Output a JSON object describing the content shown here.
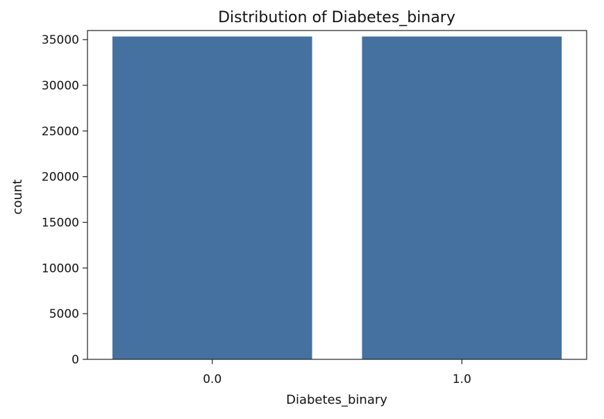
{
  "chart_data": {
    "type": "bar",
    "title": "Distribution of Diabetes_binary",
    "xlabel": "Diabetes_binary",
    "ylabel": "count",
    "categories": [
      "0.0",
      "1.0"
    ],
    "values": [
      35346,
      35346
    ],
    "ylim": [
      0,
      36000
    ],
    "yticks": [
      0,
      5000,
      10000,
      15000,
      20000,
      25000,
      30000,
      35000
    ],
    "bar_color": "#4571A0",
    "grid": false,
    "legend": false
  }
}
